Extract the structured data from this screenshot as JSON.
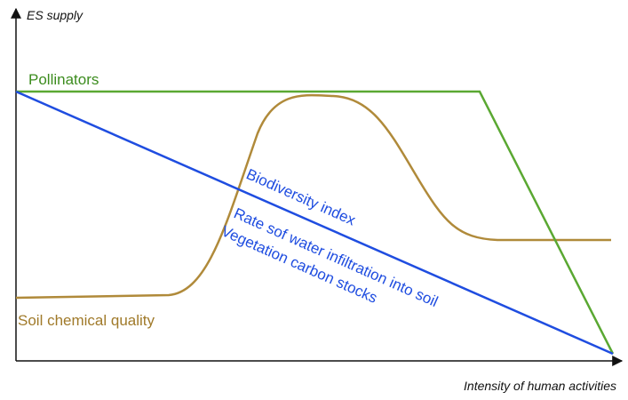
{
  "axes": {
    "y_label": "ES supply",
    "x_label": "Intensity of human activities"
  },
  "curves": [
    {
      "labels": [
        "Pollinators"
      ]
    },
    {
      "labels": [
        "Biodiversity index",
        "Rate sof water infiltration into soil",
        "Vegetation carbon stocks"
      ]
    },
    {
      "labels": [
        "Soil chemical quality"
      ]
    }
  ]
}
